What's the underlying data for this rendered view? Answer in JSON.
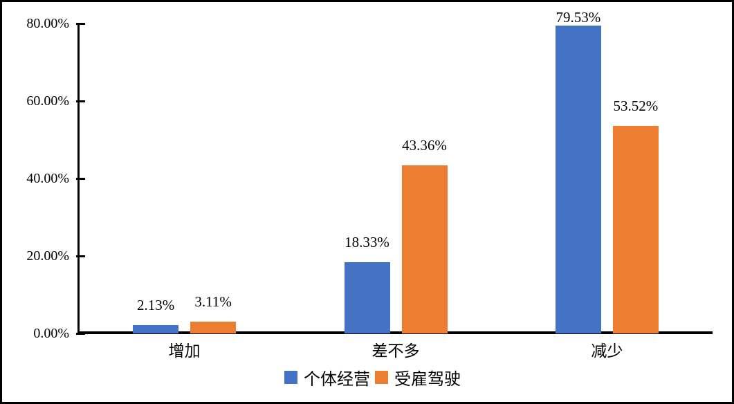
{
  "chart_data": {
    "type": "bar",
    "title": "",
    "xlabel": "",
    "ylabel": "",
    "categories": [
      "增加",
      "差不多",
      "减少"
    ],
    "series": [
      {
        "name": "个体经营",
        "color": "#4472C4",
        "values": [
          2.13,
          18.33,
          79.53
        ],
        "data_labels": [
          "2.13%",
          "18.33%",
          "79.53%"
        ]
      },
      {
        "name": "受雇驾驶",
        "color": "#ED7D31",
        "values": [
          3.11,
          43.36,
          53.52
        ],
        "data_labels": [
          "3.11%",
          "43.36%",
          "53.52%"
        ]
      }
    ],
    "y_axis": {
      "min": 0,
      "max": 80,
      "tick_values": [
        0,
        20,
        40,
        60,
        80
      ],
      "tick_labels": [
        "0.00%",
        "20.00%",
        "40.00%",
        "60.00%",
        "80.00%"
      ],
      "format": "percent"
    },
    "grid": false,
    "legend": {
      "position": "bottom",
      "entries": [
        "个体经营",
        "受雇驾驶"
      ]
    },
    "colors": {
      "axis": "#000000",
      "text": "#000000",
      "background": "#FFFFFF",
      "border": "#000000"
    }
  }
}
